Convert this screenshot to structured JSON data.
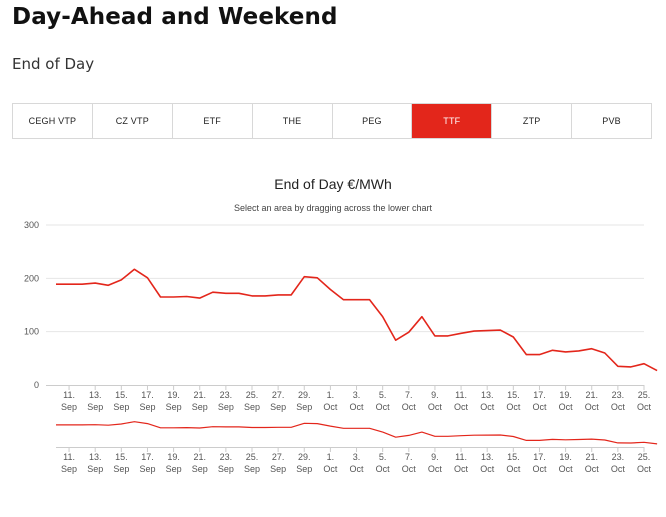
{
  "page": {
    "title": "Day-Ahead and Weekend",
    "subtitle": "End of Day"
  },
  "tabs": [
    {
      "label": "CEGH VTP",
      "active": false
    },
    {
      "label": "CZ VTP",
      "active": false
    },
    {
      "label": "ETF",
      "active": false
    },
    {
      "label": "THE",
      "active": false
    },
    {
      "label": "PEG",
      "active": false
    },
    {
      "label": "TTF",
      "active": true
    },
    {
      "label": "ZTP",
      "active": false
    },
    {
      "label": "PVB",
      "active": false
    }
  ],
  "colors": {
    "accent": "#e3261b",
    "series": "#e3261b",
    "grid": "#e6e6e6",
    "text": "#222222"
  },
  "chart_data": {
    "type": "line",
    "title": "End of Day €/MWh",
    "subtitle": "Select an area by dragging across the lower chart",
    "y_ticks": [
      0,
      100,
      200,
      300
    ],
    "ylim": [
      0,
      300
    ],
    "grid": true,
    "x_ticks": [
      {
        "day": "11.",
        "month": "Sep"
      },
      {
        "day": "13.",
        "month": "Sep"
      },
      {
        "day": "15.",
        "month": "Sep"
      },
      {
        "day": "17.",
        "month": "Sep"
      },
      {
        "day": "19.",
        "month": "Sep"
      },
      {
        "day": "21.",
        "month": "Sep"
      },
      {
        "day": "23.",
        "month": "Sep"
      },
      {
        "day": "25.",
        "month": "Sep"
      },
      {
        "day": "27.",
        "month": "Sep"
      },
      {
        "day": "29.",
        "month": "Sep"
      },
      {
        "day": "1.",
        "month": "Oct"
      },
      {
        "day": "3.",
        "month": "Oct"
      },
      {
        "day": "5.",
        "month": "Oct"
      },
      {
        "day": "7.",
        "month": "Oct"
      },
      {
        "day": "9.",
        "month": "Oct"
      },
      {
        "day": "11.",
        "month": "Oct"
      },
      {
        "day": "13.",
        "month": "Oct"
      },
      {
        "day": "15.",
        "month": "Oct"
      },
      {
        "day": "17.",
        "month": "Oct"
      },
      {
        "day": "19.",
        "month": "Oct"
      },
      {
        "day": "21.",
        "month": "Oct"
      },
      {
        "day": "23.",
        "month": "Oct"
      },
      {
        "day": "25.",
        "month": "Oct"
      }
    ],
    "x_range": [
      "2022-09-10",
      "2022-10-25"
    ],
    "points": [
      {
        "x": "2022-09-10",
        "y": 189
      },
      {
        "x": "2022-09-12",
        "y": 189
      },
      {
        "x": "2022-09-13",
        "y": 191
      },
      {
        "x": "2022-09-14",
        "y": 187
      },
      {
        "x": "2022-09-15",
        "y": 197
      },
      {
        "x": "2022-09-16",
        "y": 217
      },
      {
        "x": "2022-09-17",
        "y": 201
      },
      {
        "x": "2022-09-18",
        "y": 165
      },
      {
        "x": "2022-09-19",
        "y": 165
      },
      {
        "x": "2022-09-20",
        "y": 166
      },
      {
        "x": "2022-09-21",
        "y": 163
      },
      {
        "x": "2022-09-22",
        "y": 174
      },
      {
        "x": "2022-09-23",
        "y": 172
      },
      {
        "x": "2022-09-24",
        "y": 172
      },
      {
        "x": "2022-09-25",
        "y": 167
      },
      {
        "x": "2022-09-26",
        "y": 167
      },
      {
        "x": "2022-09-27",
        "y": 169
      },
      {
        "x": "2022-09-28",
        "y": 169
      },
      {
        "x": "2022-09-29",
        "y": 203
      },
      {
        "x": "2022-09-30",
        "y": 201
      },
      {
        "x": "2022-10-01",
        "y": 179
      },
      {
        "x": "2022-10-02",
        "y": 160
      },
      {
        "x": "2022-10-03",
        "y": 160
      },
      {
        "x": "2022-10-04",
        "y": 160
      },
      {
        "x": "2022-10-05",
        "y": 128
      },
      {
        "x": "2022-10-06",
        "y": 84
      },
      {
        "x": "2022-10-07",
        "y": 99
      },
      {
        "x": "2022-10-08",
        "y": 128
      },
      {
        "x": "2022-10-09",
        "y": 92
      },
      {
        "x": "2022-10-10",
        "y": 92
      },
      {
        "x": "2022-10-11",
        "y": 97
      },
      {
        "x": "2022-10-12",
        "y": 101
      },
      {
        "x": "2022-10-13",
        "y": 102
      },
      {
        "x": "2022-10-14",
        "y": 103
      },
      {
        "x": "2022-10-15",
        "y": 90
      },
      {
        "x": "2022-10-16",
        "y": 57
      },
      {
        "x": "2022-10-17",
        "y": 57
      },
      {
        "x": "2022-10-18",
        "y": 65
      },
      {
        "x": "2022-10-19",
        "y": 62
      },
      {
        "x": "2022-10-20",
        "y": 64
      },
      {
        "x": "2022-10-21",
        "y": 68
      },
      {
        "x": "2022-10-22",
        "y": 60
      },
      {
        "x": "2022-10-23",
        "y": 35
      },
      {
        "x": "2022-10-24",
        "y": 34
      },
      {
        "x": "2022-10-25",
        "y": 40
      },
      {
        "x": "2022-10-26",
        "y": 27
      }
    ]
  }
}
